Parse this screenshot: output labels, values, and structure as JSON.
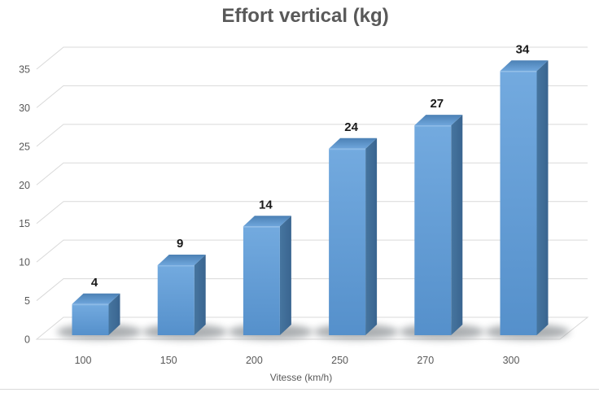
{
  "chart_data": {
    "type": "bar",
    "style": "3d-column",
    "title": "Effort vertical (kg)",
    "xlabel": "Vitesse (km/h)",
    "ylabel": "",
    "categories": [
      "100",
      "150",
      "200",
      "250",
      "270",
      "300"
    ],
    "values": [
      4,
      9,
      14,
      24,
      27,
      34
    ],
    "data_labels": [
      "4",
      "9",
      "14",
      "24",
      "27",
      "34"
    ],
    "yticks": [
      0,
      5,
      10,
      15,
      20,
      25,
      30,
      35
    ],
    "ylim": [
      0,
      35
    ],
    "grid": true,
    "legend": false,
    "colors": {
      "bar_front_light": "#73AADF",
      "bar_front_dark": "#5590CB",
      "bar_top_front": "#6FA6DC",
      "bar_top_back": "#4C81B5",
      "bar_side_light": "#46759F",
      "bar_side_dark": "#3A6590",
      "bar_edge_highlight": "#8FBCE8",
      "shadow": "#7F8488",
      "gridline": "#D9D9D9",
      "floor_fill": "#FFFFFF",
      "axis_text": "#595959",
      "data_label_text": "#1A1A1A",
      "title_text": "#595959",
      "background": "#FFFFFF",
      "frame_line": "#D9D9D9"
    }
  }
}
